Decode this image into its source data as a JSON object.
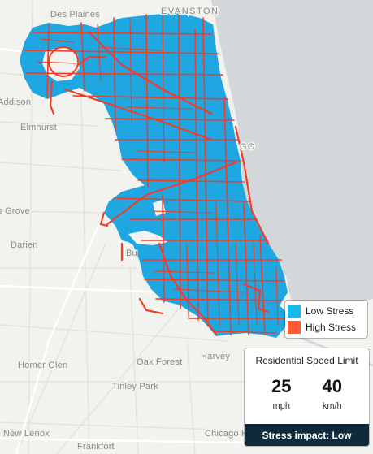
{
  "map": {
    "places": [
      {
        "name": "Des Plaines",
        "caps": false
      },
      {
        "name": "EVANSTON",
        "caps": true
      },
      {
        "name": "Addison",
        "caps": false
      },
      {
        "name": "Elmhurst",
        "caps": false
      },
      {
        "name": "GO",
        "caps": true
      },
      {
        "name": "s Grove",
        "caps": false
      },
      {
        "name": "Darien",
        "caps": false
      },
      {
        "name": "Bu",
        "caps": false
      },
      {
        "name": "Oak Forest",
        "caps": false
      },
      {
        "name": "Harvey",
        "caps": false
      },
      {
        "name": "Homer Glen",
        "caps": false
      },
      {
        "name": "Tinley Park",
        "caps": false
      },
      {
        "name": "New Lenox",
        "caps": false
      },
      {
        "name": "Chicago Heights",
        "caps": false
      },
      {
        "name": "Frankfort",
        "caps": false
      }
    ],
    "colors": {
      "land": "#f2f2ef",
      "water": "#d3d7da",
      "low_stress": "#1ea7e1",
      "high_stress": "#f03c2a"
    }
  },
  "legend": {
    "items": [
      {
        "label": "Low Stress",
        "color": "#17b8ea"
      },
      {
        "label": "High Stress",
        "color": "#ff5a36"
      }
    ]
  },
  "speed_panel": {
    "title": "Residential Speed Limit",
    "mph_value": "25",
    "mph_unit": "mph",
    "kmh_value": "40",
    "kmh_unit": "km/h",
    "impact": "Stress impact: Low"
  }
}
